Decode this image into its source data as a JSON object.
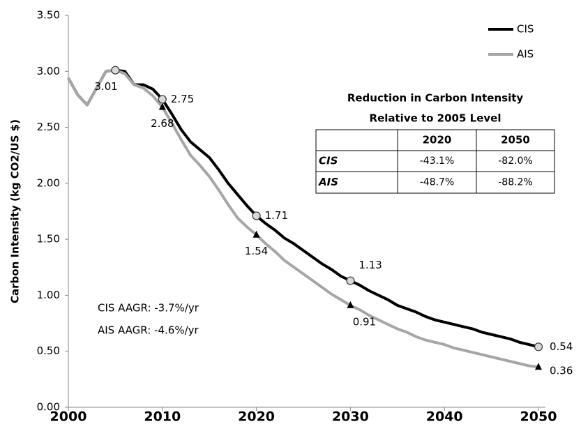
{
  "chart_data": {
    "type": "line",
    "y_label": "Carbon Intensity (kg CO2/US $)",
    "x": [
      2000,
      2001,
      2002,
      2003,
      2004,
      2005,
      2006,
      2007,
      2008,
      2009,
      2010,
      2011,
      2012,
      2013,
      2014,
      2015,
      2016,
      2017,
      2018,
      2019,
      2020,
      2021,
      2022,
      2023,
      2024,
      2025,
      2026,
      2027,
      2028,
      2029,
      2030,
      2031,
      2032,
      2033,
      2034,
      2035,
      2036,
      2037,
      2038,
      2039,
      2040,
      2041,
      2042,
      2043,
      2044,
      2045,
      2046,
      2047,
      2048,
      2049,
      2050
    ],
    "series": [
      {
        "name": "CIS",
        "color": "#000000",
        "marker": "circle",
        "values": [
          2.94,
          2.79,
          2.7,
          2.85,
          3.0,
          3.01,
          3.0,
          2.88,
          2.88,
          2.84,
          2.75,
          2.62,
          2.48,
          2.37,
          2.3,
          2.23,
          2.12,
          2.0,
          1.9,
          1.8,
          1.71,
          1.64,
          1.58,
          1.51,
          1.46,
          1.4,
          1.34,
          1.28,
          1.23,
          1.17,
          1.13,
          1.09,
          1.04,
          1.0,
          0.96,
          0.91,
          0.88,
          0.85,
          0.81,
          0.78,
          0.76,
          0.74,
          0.72,
          0.7,
          0.67,
          0.65,
          0.63,
          0.61,
          0.58,
          0.56,
          0.54
        ],
        "value_labels": [
          null,
          null,
          null,
          null,
          null,
          "3.01",
          null,
          null,
          null,
          null,
          "2.75",
          null,
          null,
          null,
          null,
          null,
          null,
          null,
          null,
          null,
          "1.71",
          null,
          null,
          null,
          null,
          null,
          null,
          null,
          null,
          null,
          "1.13",
          null,
          null,
          null,
          null,
          null,
          null,
          null,
          null,
          null,
          null,
          null,
          null,
          null,
          null,
          null,
          null,
          null,
          null,
          null,
          "0.54"
        ]
      },
      {
        "name": "AIS",
        "color": "#a6a6a6",
        "marker": "triangle",
        "values": [
          2.94,
          2.79,
          2.7,
          2.85,
          3.0,
          3.01,
          2.98,
          2.88,
          2.85,
          2.78,
          2.68,
          2.54,
          2.39,
          2.25,
          2.16,
          2.06,
          1.94,
          1.81,
          1.69,
          1.61,
          1.54,
          1.46,
          1.39,
          1.31,
          1.25,
          1.19,
          1.13,
          1.07,
          1.01,
          0.96,
          0.91,
          0.87,
          0.82,
          0.78,
          0.74,
          0.7,
          0.67,
          0.63,
          0.6,
          0.58,
          0.56,
          0.53,
          0.51,
          0.49,
          0.47,
          0.45,
          0.43,
          0.41,
          0.39,
          0.37,
          0.36
        ],
        "value_labels": [
          null,
          null,
          null,
          null,
          null,
          null,
          null,
          null,
          null,
          null,
          "2.68",
          null,
          null,
          null,
          null,
          null,
          null,
          null,
          null,
          null,
          "1.54",
          null,
          null,
          null,
          null,
          null,
          null,
          null,
          null,
          null,
          "0.91",
          null,
          null,
          null,
          null,
          null,
          null,
          null,
          null,
          null,
          null,
          null,
          null,
          null,
          null,
          null,
          null,
          null,
          null,
          null,
          "0.36"
        ]
      }
    ],
    "xlim": [
      2000,
      2050
    ],
    "xticks": [
      2000,
      2010,
      2020,
      2030,
      2040,
      2050
    ],
    "ylim": [
      0,
      3.5
    ],
    "yticks": [
      {
        "value": 0,
        "label": "0.00"
      },
      {
        "value": 0.5,
        "label": "0.50"
      },
      {
        "value": 1,
        "label": "1.00"
      },
      {
        "value": 1.5,
        "label": "1.50"
      },
      {
        "value": 2,
        "label": "2.00"
      },
      {
        "value": 2.5,
        "label": "2.50"
      },
      {
        "value": 3,
        "label": "3.00"
      },
      {
        "value": 3.5,
        "label": "3.50"
      }
    ],
    "grid": false,
    "legend": "upper right",
    "annotations": [
      "CIS AAGR: -3.7%/yr",
      "AIS AAGR: -4.6%/yr"
    ],
    "table": {
      "title": [
        "Reduction in Carbon Intensity",
        "Relative to 2005 Level"
      ],
      "columns": [
        "2020",
        "2050"
      ],
      "rows": [
        [
          "CIS",
          "-43.1%",
          "-82.0%"
        ],
        [
          "AIS",
          "-48.7%",
          "-88.2%"
        ]
      ]
    }
  }
}
